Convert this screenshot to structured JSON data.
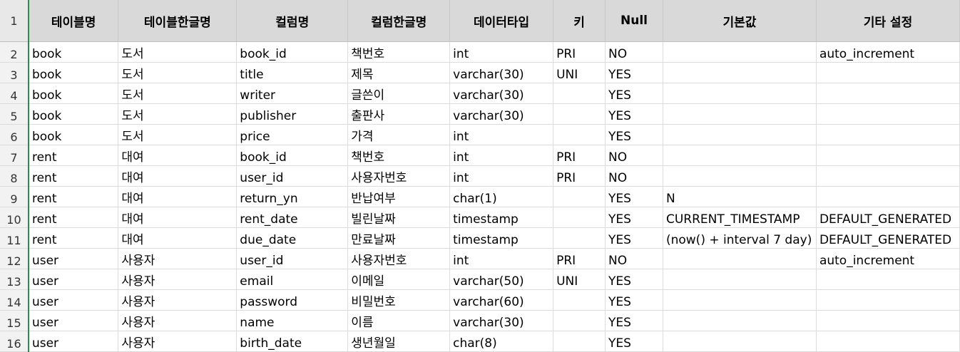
{
  "headers": [
    "테이블명",
    "테이블한글명",
    "컬럼명",
    "컬럼한글명",
    "데이터타입",
    "키",
    "Null",
    "기본값",
    "기타 설정"
  ],
  "rows": [
    [
      "book",
      "도서",
      "book_id",
      "책번호",
      "int",
      "PRI",
      "NO",
      "",
      "auto_increment"
    ],
    [
      "book",
      "도서",
      "title",
      "제목",
      "varchar(30)",
      "UNI",
      "YES",
      "",
      ""
    ],
    [
      "book",
      "도서",
      "writer",
      "글쓴이",
      "varchar(30)",
      "",
      "YES",
      "",
      ""
    ],
    [
      "book",
      "도서",
      "publisher",
      "출판사",
      "varchar(30)",
      "",
      "YES",
      "",
      ""
    ],
    [
      "book",
      "도서",
      "price",
      "가격",
      "int",
      "",
      "YES",
      "",
      ""
    ],
    [
      "rent",
      "대여",
      "book_id",
      "책번호",
      "int",
      "PRI",
      "NO",
      "",
      ""
    ],
    [
      "rent",
      "대여",
      "user_id",
      "사용자번호",
      "int",
      "PRI",
      "NO",
      "",
      ""
    ],
    [
      "rent",
      "대여",
      "return_yn",
      "반납여부",
      "char(1)",
      "",
      "YES",
      "N",
      ""
    ],
    [
      "rent",
      "대여",
      "rent_date",
      "빌린날짜",
      "timestamp",
      "",
      "YES",
      "CURRENT_TIMESTAMP",
      "DEFAULT_GENERATED"
    ],
    [
      "rent",
      "대여",
      "due_date",
      "만료날짜",
      "timestamp",
      "",
      "YES",
      "(now() + interval 7 day)",
      "DEFAULT_GENERATED"
    ],
    [
      "user",
      "사용자",
      "user_id",
      "사용자번호",
      "int",
      "PRI",
      "NO",
      "",
      "auto_increment"
    ],
    [
      "user",
      "사용자",
      "email",
      "이메일",
      "varchar(50)",
      "UNI",
      "YES",
      "",
      ""
    ],
    [
      "user",
      "사용자",
      "password",
      "비밀번호",
      "varchar(60)",
      "",
      "YES",
      "",
      ""
    ],
    [
      "user",
      "사용자",
      "name",
      "이름",
      "varchar(30)",
      "",
      "YES",
      "",
      ""
    ],
    [
      "user",
      "사용자",
      "birth_date",
      "생년월일",
      "char(8)",
      "",
      "YES",
      "",
      ""
    ]
  ]
}
